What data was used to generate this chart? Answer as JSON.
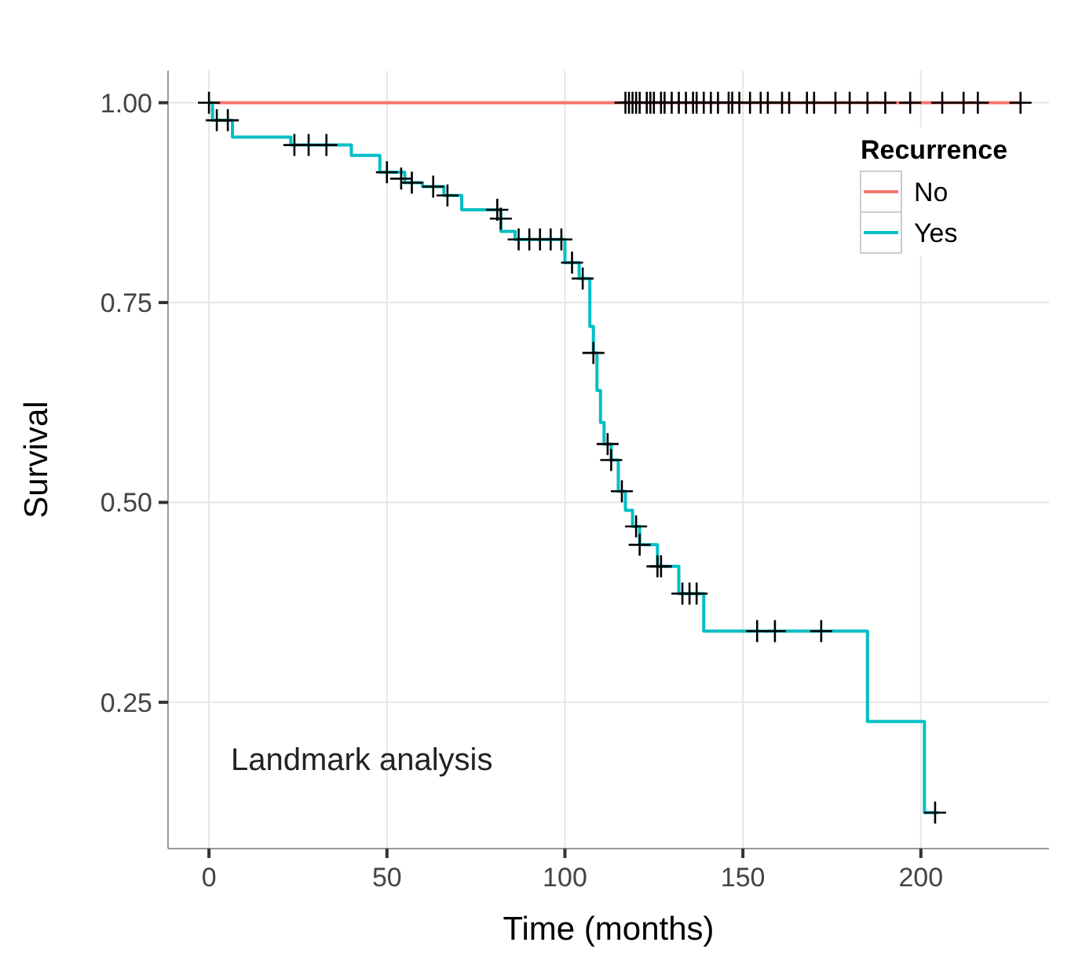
{
  "chart_data": {
    "type": "step",
    "xlabel": "Time (months)",
    "ylabel": "Survival",
    "legend_title": "Recurrence",
    "xlim": [
      -11.5,
      236
    ],
    "ylim": [
      0.067,
      1.04
    ],
    "xticks": [
      0,
      50,
      100,
      150,
      200
    ],
    "yticks": [
      {
        "value": 0.25,
        "label": "0.25"
      },
      {
        "value": 0.5,
        "label": "0.50"
      },
      {
        "value": 0.75,
        "label": "0.75"
      },
      {
        "value": 1,
        "label": "1.00"
      }
    ],
    "grid": true,
    "legend": "top right",
    "annotations": [
      "Landmark analysis"
    ],
    "series": [
      {
        "name": "No",
        "color": "#f8766d",
        "x": [
          0,
          228
        ],
        "values": [
          1,
          1
        ]
      },
      {
        "name": "Yes",
        "color": "#00bfc4",
        "x": [
          0,
          1,
          6.6,
          23,
          40,
          48,
          55,
          60,
          66,
          71,
          82,
          86,
          100,
          104,
          107,
          108,
          109,
          110,
          111,
          113,
          115,
          117,
          119,
          121,
          126,
          132,
          139,
          185,
          201,
          205
        ],
        "values": [
          1,
          0.978,
          0.957,
          0.947,
          0.934,
          0.913,
          0.9,
          0.895,
          0.884,
          0.866,
          0.839,
          0.829,
          0.8,
          0.78,
          0.72,
          0.687,
          0.64,
          0.6,
          0.573,
          0.553,
          0.514,
          0.49,
          0.47,
          0.447,
          0.42,
          0.386,
          0.339,
          0.226,
          0.112,
          0.112
        ]
      },
      {
        "type": "scatter",
        "color": "#000000",
        "marker": "cross",
        "x": [
          0,
          2.2,
          5.3,
          24,
          28,
          33,
          50,
          54,
          57,
          63,
          67,
          81,
          82,
          87,
          90,
          93,
          96,
          99,
          102,
          105,
          108,
          112,
          113,
          116,
          120,
          121,
          126,
          127,
          133,
          135,
          137,
          154,
          159,
          172,
          204,
          117,
          118,
          119,
          120,
          121,
          123,
          124,
          125,
          127,
          128,
          130,
          132,
          134,
          136,
          137,
          139,
          141,
          143,
          146,
          147,
          149,
          152,
          155,
          157,
          161,
          163,
          168,
          170,
          176,
          180,
          185,
          190,
          197,
          206,
          212,
          216,
          228
        ],
        "values": [
          1,
          0.978,
          0.978,
          0.947,
          0.947,
          0.947,
          0.913,
          0.905,
          0.9,
          0.895,
          0.884,
          0.866,
          0.855,
          0.829,
          0.829,
          0.829,
          0.829,
          0.829,
          0.8,
          0.78,
          0.687,
          0.573,
          0.553,
          0.514,
          0.47,
          0.447,
          0.42,
          0.42,
          0.386,
          0.386,
          0.386,
          0.339,
          0.339,
          0.339,
          0.112,
          1,
          1,
          1,
          1,
          1,
          1,
          1,
          1,
          1,
          1,
          1,
          1,
          1,
          1,
          1,
          1,
          1,
          1,
          1,
          1,
          1,
          1,
          1,
          1,
          1,
          1,
          1,
          1,
          1,
          1,
          1,
          1,
          1,
          1,
          1,
          1,
          1
        ]
      }
    ]
  }
}
